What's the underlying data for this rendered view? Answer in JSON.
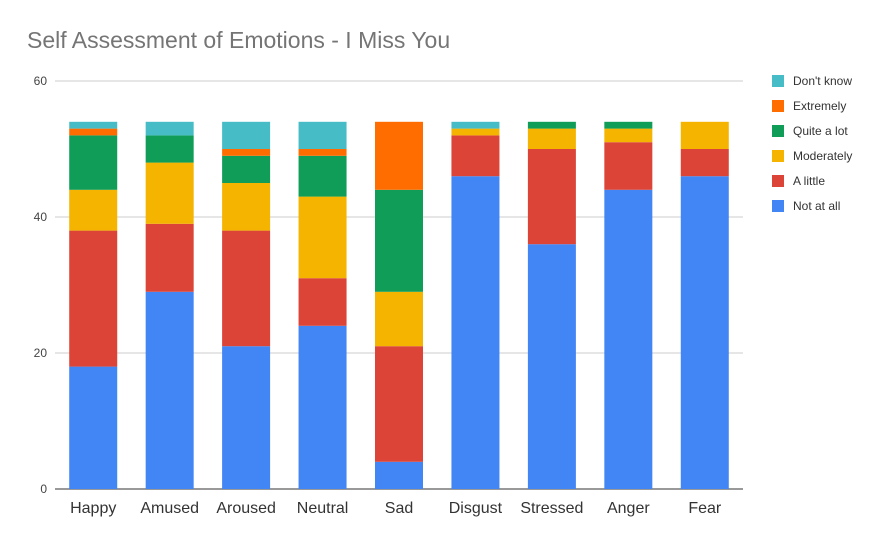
{
  "chart_data": {
    "type": "bar",
    "stacked": true,
    "title": "Self Assessment of Emotions - I Miss You",
    "xlabel": "",
    "ylabel": "",
    "ylim": [
      0,
      60
    ],
    "yticks": [
      0,
      20,
      40,
      60
    ],
    "grid": true,
    "legend": "right",
    "categories": [
      "Happy",
      "Amused",
      "Aroused",
      "Neutral",
      "Sad",
      "Disgust",
      "Stressed",
      "Anger",
      "Fear"
    ],
    "series": [
      {
        "name": "Not at all",
        "color": "#4285f4",
        "values": [
          18,
          29,
          21,
          24,
          4,
          46,
          36,
          44,
          46
        ]
      },
      {
        "name": "A little",
        "color": "#db4437",
        "values": [
          20,
          10,
          17,
          7,
          17,
          6,
          14,
          7,
          4
        ]
      },
      {
        "name": "Moderately",
        "color": "#f4b400",
        "values": [
          6,
          9,
          7,
          12,
          8,
          1,
          3,
          2,
          4
        ]
      },
      {
        "name": "Quite a lot",
        "color": "#0f9d58",
        "values": [
          8,
          4,
          4,
          6,
          15,
          0,
          1,
          1,
          0
        ]
      },
      {
        "name": "Extremely",
        "color": "#ff6d00",
        "values": [
          1,
          0,
          1,
          1,
          10,
          0,
          0,
          0,
          0
        ]
      },
      {
        "name": "Don't know",
        "color": "#46bdc6",
        "values": [
          1,
          2,
          4,
          4,
          0,
          1,
          0,
          0,
          0
        ]
      }
    ]
  }
}
